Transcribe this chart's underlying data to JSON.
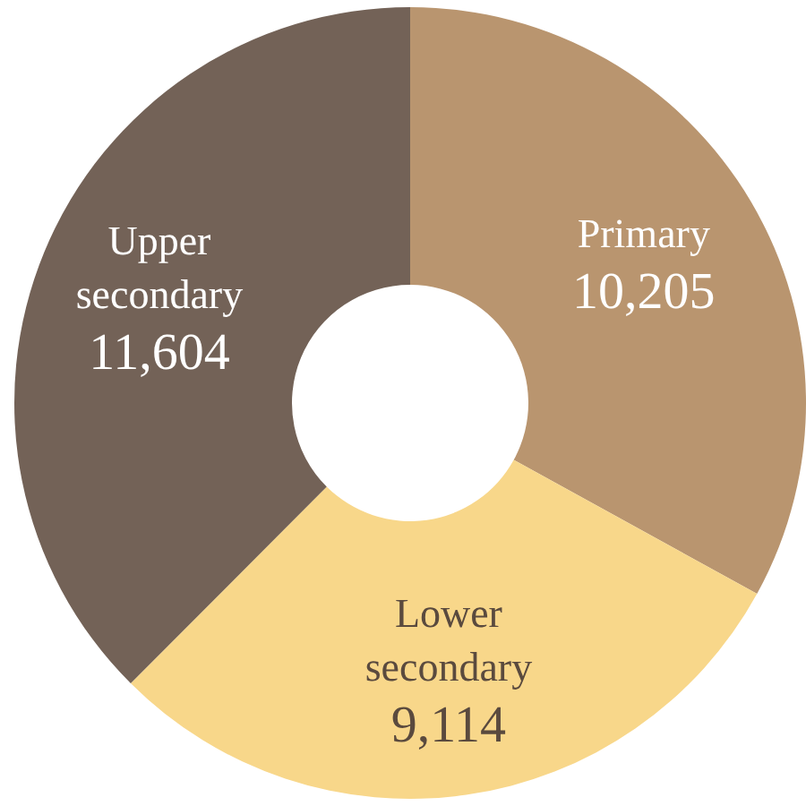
{
  "chart_data": {
    "type": "donut",
    "categories": [
      "Primary",
      "Lower secondary",
      "Upper secondary"
    ],
    "values": [
      10205,
      9114,
      11604
    ],
    "colors": [
      "#b9956f",
      "#f8d78a",
      "#736257"
    ],
    "value_labels": [
      "10,205",
      "9,114",
      "11,604"
    ],
    "legend": false
  }
}
